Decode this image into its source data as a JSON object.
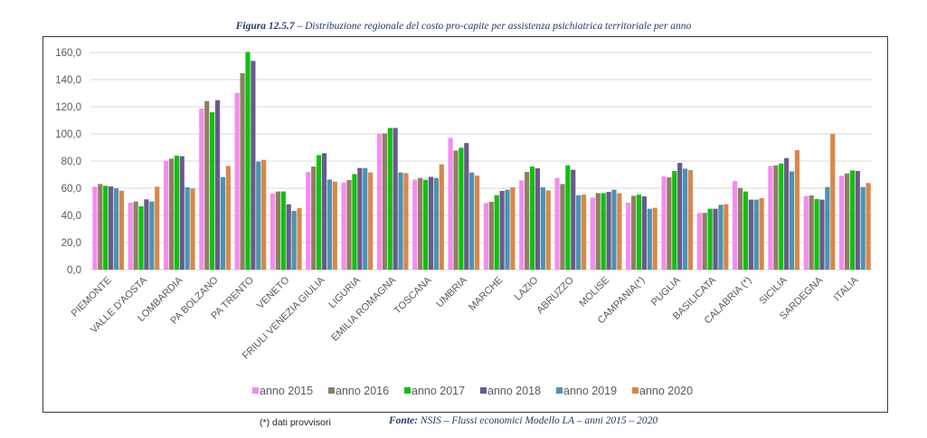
{
  "figure": {
    "number": "Figura 12.5.7",
    "caption": " – Distribuzione regionale del costo pro-capite per assistenza psichiatrica territoriale per anno"
  },
  "footnote": "(*) dati provvisori",
  "source": {
    "label": "Fonte:",
    "text": " NSIS – Flussi economici Modello LA – anni 2015 – 2020"
  },
  "chart_data": {
    "type": "bar",
    "title": "Distribuzione regionale del costo pro-capite per assistenza psichiatrica territoriale per anno",
    "xlabel": "",
    "ylabel": "",
    "ylim": [
      0,
      160
    ],
    "yticks": [
      "0,0",
      "20,0",
      "40,0",
      "60,0",
      "80,0",
      "100,0",
      "120,0",
      "140,0",
      "160,0"
    ],
    "ytick_values": [
      0,
      20,
      40,
      60,
      80,
      100,
      120,
      140,
      160
    ],
    "grid": true,
    "legend_position": "bottom",
    "categories": [
      "PIEMONTE",
      "VALLE D'AOSTA",
      "LOMBARDIA",
      "PA BOLZANO",
      "PA TRENTO",
      "VENETO",
      "FRIULI VENEZIA GIULIA",
      "LIGURIA",
      "EMILIA ROMAGNA",
      "TOSCANA",
      "UMBRIA",
      "MARCHE",
      "LAZIO",
      "ABRUZZO",
      "MOLISE",
      "CAMPANIA(*)",
      "PUGLIA",
      "BASILICATA",
      "CALABRIA (*)",
      "SICILIA",
      "SARDEGNA",
      "ITALIA"
    ],
    "series": [
      {
        "name": "anno 2015",
        "color": "#f48cf0",
        "values": [
          61.1,
          49.3,
          80.2,
          118.7,
          130.2,
          56.0,
          72.0,
          64.2,
          100.2,
          66.4,
          97.1,
          49.1,
          65.8,
          67.6,
          53.1,
          49.3,
          68.7,
          41.8,
          65.3,
          76.4,
          54.2,
          69.3
        ]
      },
      {
        "name": "anno 2016",
        "color": "#8c8060",
        "values": [
          63.1,
          50.2,
          81.8,
          124.2,
          144.7,
          57.6,
          76.0,
          66.0,
          100.4,
          67.6,
          87.8,
          50.0,
          72.0,
          63.1,
          56.4,
          54.4,
          68.0,
          41.8,
          60.2,
          76.9,
          54.7,
          70.9
        ]
      },
      {
        "name": "anno 2017",
        "color": "#10c010",
        "values": [
          61.8,
          46.7,
          84.0,
          116.0,
          160.4,
          57.6,
          84.4,
          70.4,
          104.4,
          66.2,
          89.8,
          54.9,
          76.0,
          76.9,
          56.4,
          55.3,
          72.7,
          44.9,
          57.6,
          78.2,
          52.0,
          73.1
        ]
      },
      {
        "name": "anno 2018",
        "color": "#6a5a8c",
        "values": [
          61.3,
          51.8,
          83.6,
          124.9,
          153.8,
          48.2,
          85.8,
          74.9,
          104.4,
          68.4,
          93.3,
          58.0,
          74.7,
          73.6,
          57.3,
          54.0,
          78.7,
          44.9,
          51.6,
          82.2,
          51.6,
          72.7
        ]
      },
      {
        "name": "anno 2019",
        "color": "#4a94b0",
        "values": [
          60.0,
          50.2,
          60.7,
          68.2,
          79.6,
          43.3,
          66.4,
          74.9,
          71.6,
          67.6,
          71.6,
          58.9,
          60.7,
          54.9,
          58.9,
          44.9,
          74.4,
          47.8,
          51.6,
          72.4,
          60.9,
          60.9
        ]
      },
      {
        "name": "anno 2020",
        "color": "#d8874a",
        "values": [
          58.2,
          61.1,
          59.8,
          76.4,
          80.9,
          45.3,
          64.9,
          71.6,
          71.1,
          77.6,
          69.3,
          60.7,
          58.4,
          55.3,
          56.2,
          45.6,
          73.3,
          48.2,
          52.7,
          88.0,
          100.0,
          63.8
        ]
      }
    ]
  }
}
